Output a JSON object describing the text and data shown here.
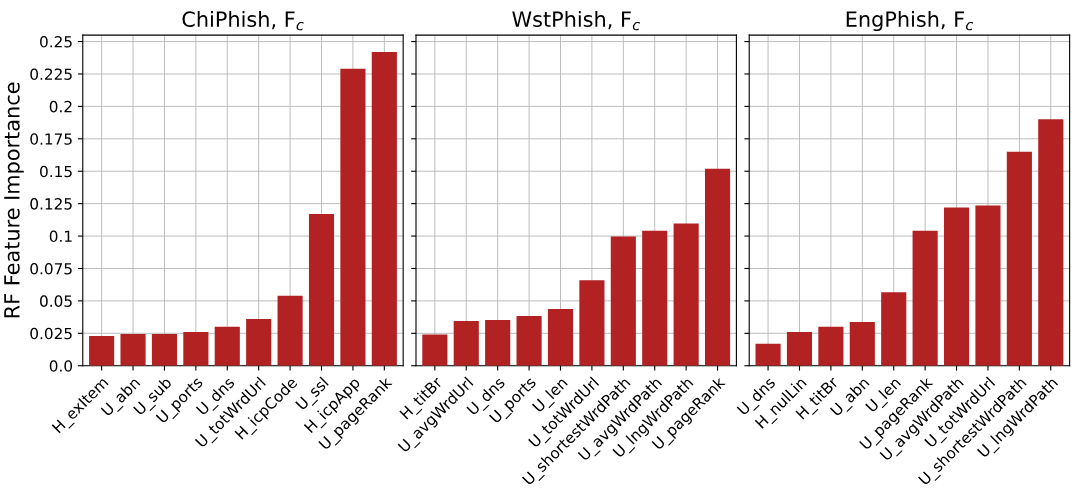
{
  "chart_data": [
    {
      "type": "bar",
      "title": "ChiPhish, F$_{c}$",
      "ylabel": "RF Feature Importance",
      "categories": [
        "H_exItem",
        "U_abn",
        "U_sub",
        "U_ports",
        "U_dns",
        "U_totWrdUrl",
        "H_icpCode",
        "U_ssl",
        "H_icpApp",
        "U_pageRank"
      ],
      "values": [
        0.023,
        0.0245,
        0.0245,
        0.026,
        0.03,
        0.036,
        0.054,
        0.117,
        0.229,
        0.242
      ],
      "color": "#b22222",
      "ylim": [
        0,
        0.255
      ],
      "yticks": [
        {
          "value": 0,
          "label": "0.0"
        },
        0.025,
        0.05,
        0.075,
        0.1,
        0.125,
        0.15,
        0.175,
        0.2,
        0.225,
        0.25
      ],
      "grid": true
    },
    {
      "type": "bar",
      "title": "WstPhish, F$_{c}$",
      "categories": [
        "H_titBr",
        "U_avgWrdUrl",
        "U_dns",
        "U_ports",
        "U_len",
        "U_totWrdUrl",
        "U_shortestWrdPath",
        "U_avgWrdPath",
        "U_lngWrdPath",
        "U_pageRank"
      ],
      "values": [
        0.024,
        0.0345,
        0.0353,
        0.0383,
        0.0437,
        0.066,
        0.0997,
        0.104,
        0.1097,
        0.152
      ],
      "color": "#b22222",
      "ylim": [
        0,
        0.255
      ],
      "yticks": [
        0,
        0.025,
        0.05,
        0.075,
        0.1,
        0.125,
        0.15,
        0.175,
        0.2,
        0.225,
        0.25
      ],
      "grid": true,
      "tick_labels": "x"
    },
    {
      "type": "bar",
      "title": "EngPhish, F$_{c}$",
      "categories": [
        "U_dns",
        "H_nulLin",
        "H_titBr",
        "U_abn",
        "U_len",
        "U_pageRank",
        "U_avgWrdPath",
        "U_totWrdUrl",
        "U_shortestWrdPath",
        "U_lngWrdPath"
      ],
      "values": [
        0.017,
        0.026,
        0.03,
        0.0337,
        0.0567,
        0.104,
        0.122,
        0.1235,
        0.165,
        0.19
      ],
      "color": "#b22222",
      "ylim": [
        0,
        0.255
      ],
      "yticks": [
        0,
        0.025,
        0.05,
        0.075,
        0.1,
        0.125,
        0.15,
        0.175,
        0.2,
        0.225,
        0.25
      ],
      "grid": true,
      "tick_labels": "x"
    }
  ]
}
